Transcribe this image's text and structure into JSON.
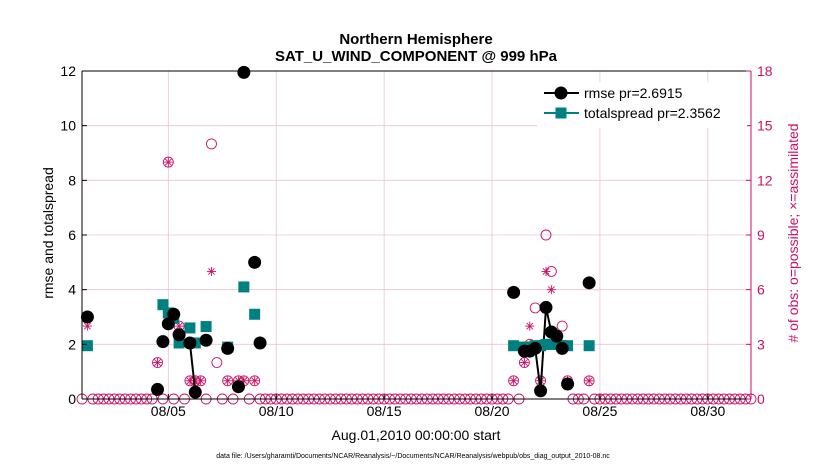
{
  "chart_data": {
    "type": "line",
    "title_line1": "Northern Hemisphere",
    "title_line2": "SAT_U_WIND_COMPONENT @ 999 hPa",
    "xlabel": "Aug.01,2010 00:00:00 start",
    "ylabel_left": "rmse and totalspread",
    "ylabel_right": "# of obs: o=possible; ×=assimilated",
    "footer": "data file: /Users/gharamti/Documents/NCAR/Reanalysis/~/Documents/NCAR/Reanalysis/webpub/obs_diag_output_2010-08.nc",
    "x_range_days": [
      1,
      32
    ],
    "x_ticks": [
      {
        "day": 5,
        "label": "08/05"
      },
      {
        "day": 10,
        "label": "08/10"
      },
      {
        "day": 15,
        "label": "08/15"
      },
      {
        "day": 20,
        "label": "08/20"
      },
      {
        "day": 25,
        "label": "08/25"
      },
      {
        "day": 30,
        "label": "08/30"
      }
    ],
    "ylim_left": [
      0,
      12
    ],
    "yticks_left": [
      "0",
      "2",
      "4",
      "6",
      "8",
      "10",
      "12"
    ],
    "ylim_right": [
      0,
      18
    ],
    "yticks_right": [
      "0",
      "3",
      "6",
      "9",
      "12",
      "15",
      "18"
    ],
    "legend_position": "top-right",
    "colors": {
      "rmse": "#000000",
      "spread": "#008080",
      "obs": "#cc1166",
      "grid": "#e9c4d4"
    },
    "series": [
      {
        "name": "rmse pr=2.6915",
        "key": "rmse",
        "marker": "circle",
        "points": [
          [
            1.25,
            3.0
          ],
          [
            4.5,
            0.35
          ],
          [
            4.75,
            2.1
          ],
          [
            5.0,
            2.75
          ],
          [
            5.25,
            3.1
          ],
          [
            5.5,
            2.35
          ],
          [
            6.0,
            2.05
          ],
          [
            6.25,
            0.25
          ],
          [
            6.75,
            2.15
          ],
          [
            7.75,
            1.85
          ],
          [
            8.25,
            0.45
          ],
          [
            8.5,
            11.95
          ],
          [
            9.0,
            5.0
          ],
          [
            9.25,
            2.05
          ],
          [
            21.0,
            3.9
          ],
          [
            21.5,
            1.75
          ],
          [
            21.75,
            1.75
          ],
          [
            22.0,
            1.85
          ],
          [
            22.25,
            0.3
          ],
          [
            22.5,
            3.35
          ],
          [
            22.75,
            2.45
          ],
          [
            23.0,
            2.3
          ],
          [
            23.25,
            1.85
          ],
          [
            23.5,
            0.55
          ],
          [
            24.5,
            4.25
          ]
        ],
        "line_segments": [
          [
            [
              6.0,
              2.05
            ],
            [
              6.25,
              0.25
            ]
          ],
          [
            [
              21.75,
              1.75
            ],
            [
              22.0,
              1.85
            ],
            [
              22.25,
              0.3
            ],
            [
              22.5,
              3.35
            ],
            [
              22.75,
              2.45
            ]
          ]
        ]
      },
      {
        "name": "totalspread pr=2.3562",
        "key": "spread",
        "marker": "square",
        "points": [
          [
            1.25,
            1.95
          ],
          [
            4.75,
            3.45
          ],
          [
            5.0,
            3.15
          ],
          [
            5.25,
            2.95
          ],
          [
            5.5,
            2.05
          ],
          [
            6.0,
            2.6
          ],
          [
            6.25,
            2.05
          ],
          [
            6.75,
            2.65
          ],
          [
            7.75,
            1.9
          ],
          [
            8.5,
            4.1
          ],
          [
            9.0,
            3.1
          ],
          [
            21.0,
            1.95
          ],
          [
            21.5,
            1.9
          ],
          [
            21.75,
            1.9
          ],
          [
            22.0,
            1.95
          ],
          [
            22.25,
            1.95
          ],
          [
            22.5,
            2.0
          ],
          [
            22.75,
            2.0
          ],
          [
            23.0,
            2.0
          ],
          [
            23.25,
            1.95
          ],
          [
            23.5,
            1.95
          ],
          [
            24.5,
            1.95
          ]
        ]
      },
      {
        "name": "obs possible",
        "key": "obs_possible",
        "marker": "open-circle",
        "axis": "right",
        "points": [
          [
            1.25,
            4.5
          ],
          [
            4.5,
            2.0
          ],
          [
            5.0,
            13.0
          ],
          [
            5.5,
            4.0
          ],
          [
            6.0,
            1.0
          ],
          [
            6.25,
            1.0
          ],
          [
            6.5,
            1.0
          ],
          [
            7.0,
            14.0
          ],
          [
            7.25,
            2.0
          ],
          [
            7.75,
            1.0
          ],
          [
            8.25,
            1.0
          ],
          [
            8.5,
            1.0
          ],
          [
            9.0,
            1.0
          ],
          [
            21.0,
            1.0
          ],
          [
            21.5,
            2.0
          ],
          [
            21.75,
            3.0
          ],
          [
            22.0,
            5.0
          ],
          [
            22.25,
            1.0
          ],
          [
            22.5,
            9.0
          ],
          [
            22.75,
            7.0
          ],
          [
            23.0,
            3.0
          ],
          [
            23.25,
            4.0
          ],
          [
            23.5,
            1.0
          ],
          [
            24.5,
            1.0
          ]
        ]
      },
      {
        "name": "obs assimilated",
        "key": "obs_assimilated",
        "marker": "asterisk",
        "axis": "right",
        "points": [
          [
            1.25,
            4.0
          ],
          [
            4.5,
            2.0
          ],
          [
            5.0,
            13.0
          ],
          [
            5.5,
            4.0
          ],
          [
            6.0,
            1.0
          ],
          [
            6.25,
            1.0
          ],
          [
            6.5,
            1.0
          ],
          [
            7.0,
            7.0
          ],
          [
            7.75,
            1.0
          ],
          [
            8.25,
            1.0
          ],
          [
            8.5,
            1.0
          ],
          [
            9.0,
            1.0
          ],
          [
            21.0,
            1.0
          ],
          [
            21.5,
            2.0
          ],
          [
            21.75,
            4.0
          ],
          [
            22.25,
            1.0
          ],
          [
            22.5,
            7.0
          ],
          [
            22.75,
            6.0
          ],
          [
            23.0,
            3.0
          ],
          [
            23.5,
            1.0
          ],
          [
            24.5,
            1.0
          ]
        ]
      }
    ]
  }
}
